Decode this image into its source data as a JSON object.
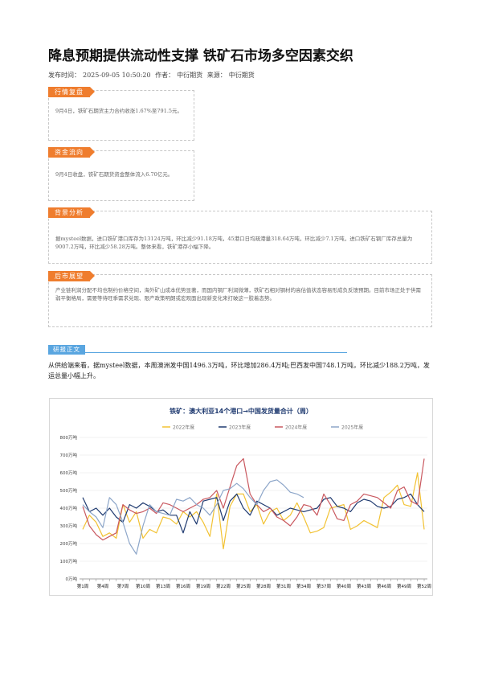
{
  "article": {
    "title": "降息预期提供流动性支撑 铁矿石市场多空因素交织",
    "meta_publish_label": "发布时间：",
    "publish_time": "2025-09-05 10:50:20",
    "meta_author_label": "作者：",
    "author": "中衍期货",
    "meta_source_label": "来源：",
    "source": "中衍期货"
  },
  "sections": {
    "market_review": {
      "tag": "行情复盘",
      "text": "9月4日，铁矿石期货主力合约收涨1.67%至791.5元。"
    },
    "capital_flow": {
      "tag": "资金流向",
      "text": "9月4日收盘，铁矿石期货资金整体流入6.70亿元。"
    },
    "background": {
      "tag": "背景分析",
      "text": "据mysteel数据，进口铁矿港口库存为13124万吨，环比减少91.18万吨，45港口日均疏港量318.64万吨，环比减少7.1万吨，进口铁矿石钢厂库存总量为9007.2万吨，环比减少58.28万吨。整体来看，铁矿港存小幅下降。"
    },
    "outlook": {
      "tag": "后市展望",
      "text": "产业链利润分配不均也制约价格空间，海外矿山成本优势显著，而国内钢厂利润微薄，铁矿石相对钢材的高估值状态容易形成负反馈预期。目前市场正处于供需弱平衡格局，需要等待旺季需求兑现、限产政策明朗或宏观面出现新变化来打破这一胶着态势。"
    }
  },
  "report": {
    "tag": "研报正文",
    "text": "从供给端来看，据mysteel数据，本周澳洲发中国1496.3万吨，环比增加286.4万吨;巴西发中国748.1万吨，环比减少188.2万吨，发运总量小幅上升。"
  },
  "chart_data": {
    "type": "line",
    "title": "铁矿：澳大利亚14个港口→中国发货量合计（周）",
    "xlabel": "",
    "ylabel": "",
    "ylim": [
      0,
      800
    ],
    "y_ticks": [
      "0万吨",
      "100万吨",
      "200万吨",
      "300万吨",
      "400万吨",
      "500万吨",
      "600万吨",
      "700万吨",
      "800万吨"
    ],
    "x_tick_labels": [
      "第1周",
      "第4周",
      "第7周",
      "第10周",
      "第13周",
      "第16周",
      "第19周",
      "第22周",
      "第25周",
      "第28周",
      "第31周",
      "第34周",
      "第37周",
      "第40周",
      "第43周",
      "第46周",
      "第49周",
      "第52周"
    ],
    "grid": "horizontal",
    "legend_position": "top",
    "colors": {
      "2022": "#f2c233",
      "2023": "#1f3a70",
      "2024": "#c9585f",
      "2025": "#8da6c9"
    },
    "series": [
      {
        "name": "2022年度",
        "values": [
          280,
          360,
          320,
          240,
          260,
          230,
          420,
          320,
          380,
          230,
          280,
          260,
          350,
          340,
          310,
          380,
          350,
          380,
          320,
          240,
          480,
          170,
          410,
          480,
          480,
          380,
          420,
          310,
          380,
          400,
          330,
          360,
          430,
          350,
          260,
          270,
          290,
          400,
          410,
          420,
          280,
          300,
          330,
          310,
          290,
          460,
          490,
          530,
          420,
          410,
          600,
          280
        ]
      },
      {
        "name": "2023年度",
        "values": [
          460,
          380,
          400,
          360,
          400,
          350,
          320,
          420,
          400,
          430,
          410,
          380,
          390,
          360,
          360,
          260,
          380,
          310,
          440,
          450,
          460,
          330,
          440,
          480,
          400,
          360,
          440,
          420,
          400,
          360,
          380,
          400,
          390,
          380,
          390,
          400,
          450,
          460,
          410,
          400,
          380,
          430,
          450,
          440,
          410,
          400,
          410,
          450,
          460,
          480,
          420,
          380
        ]
      },
      {
        "name": "2024年度",
        "values": [
          410,
          300,
          250,
          220,
          240,
          260,
          420,
          390,
          370,
          380,
          400,
          370,
          430,
          420,
          400,
          380,
          400,
          420,
          450,
          460,
          500,
          400,
          520,
          640,
          680,
          480,
          420,
          380,
          400,
          350,
          330,
          300,
          350,
          420,
          410,
          360,
          480,
          420,
          340,
          330,
          420,
          440,
          480,
          470,
          460,
          430,
          400,
          500,
          520,
          440,
          420,
          680
        ]
      },
      {
        "name": "2025年度",
        "values": [
          420,
          380,
          350,
          290,
          460,
          420,
          320,
          200,
          140,
          300,
          420,
          380,
          370,
          360,
          450,
          440,
          460,
          420,
          400,
          360,
          420,
          500,
          510,
          540,
          510,
          460,
          420,
          500,
          550,
          560,
          530,
          490,
          480,
          460
        ]
      }
    ]
  }
}
